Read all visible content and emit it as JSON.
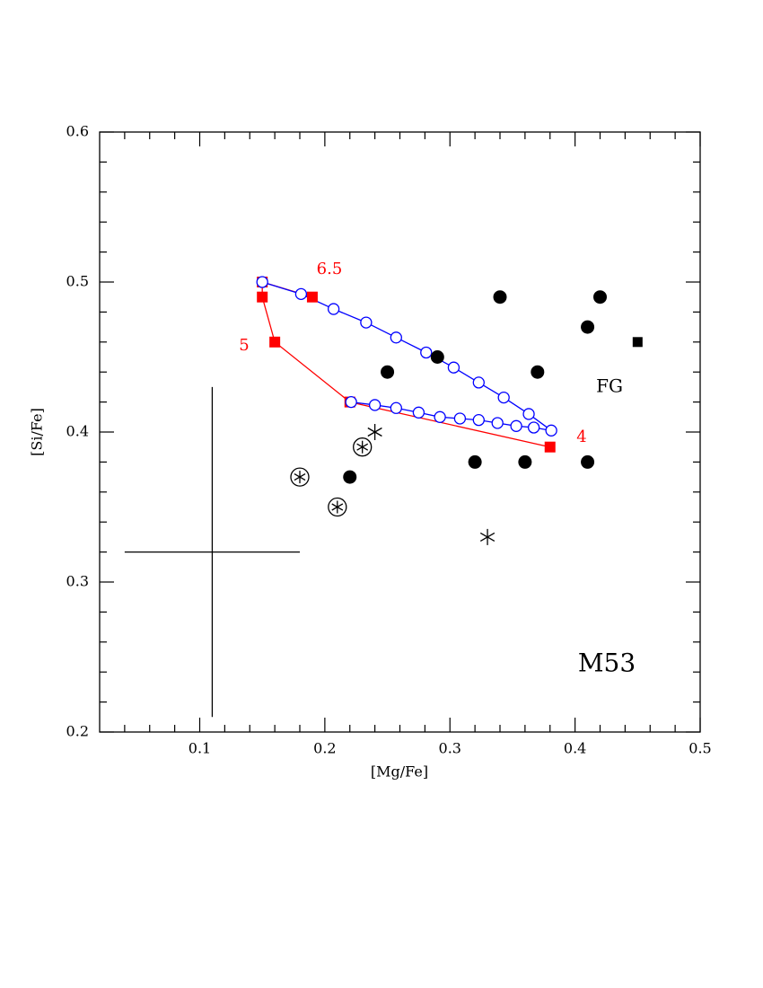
{
  "chart_data": {
    "type": "scatter",
    "xlabel": "[Mg/Fe]",
    "ylabel": "[Si/Fe]",
    "xlim": [
      0.02,
      0.5
    ],
    "ylim": [
      0.2,
      0.6
    ],
    "xticks": [
      0.1,
      0.2,
      0.3,
      0.4,
      0.5
    ],
    "yticks": [
      0.2,
      0.3,
      0.4,
      0.5,
      0.6
    ],
    "xminorticks": [
      0.04,
      0.06,
      0.08,
      0.12,
      0.14,
      0.16,
      0.18,
      0.22,
      0.24,
      0.26,
      0.28,
      0.32,
      0.34,
      0.36,
      0.38,
      0.42,
      0.44,
      0.46,
      0.48
    ],
    "yminorticks": [
      0.22,
      0.24,
      0.26,
      0.28,
      0.32,
      0.34,
      0.36,
      0.38,
      0.42,
      0.44,
      0.46,
      0.48,
      0.52,
      0.54,
      0.56,
      0.58
    ],
    "series": [
      {
        "marker": "circle",
        "color": "#000000",
        "x": [
          0.34,
          0.42,
          0.41,
          0.29,
          0.25,
          0.37,
          0.32,
          0.36,
          0.41,
          0.22
        ],
        "y": [
          0.49,
          0.49,
          0.47,
          0.45,
          0.44,
          0.44,
          0.38,
          0.38,
          0.38,
          0.37
        ]
      },
      {
        "marker": "square",
        "color": "#000000",
        "x": [
          0.45
        ],
        "y": [
          0.46
        ]
      },
      {
        "marker": "circled-asterisk",
        "color": "#000000",
        "x": [
          0.18,
          0.23,
          0.21
        ],
        "y": [
          0.37,
          0.39,
          0.35
        ]
      },
      {
        "marker": "asterisk",
        "color": "#000000",
        "x": [
          0.24,
          0.33
        ],
        "y": [
          0.4,
          0.33
        ]
      },
      {
        "marker": "open-circle-line",
        "color": "#0000ff",
        "x": [
          0.15,
          0.181,
          0.207,
          0.233,
          0.257,
          0.281,
          0.303,
          0.323,
          0.343,
          0.363,
          0.381,
          0.367,
          0.353,
          0.338,
          0.323,
          0.308,
          0.292,
          0.275,
          0.257,
          0.24,
          0.221
        ],
        "y": [
          0.5,
          0.492,
          0.482,
          0.473,
          0.463,
          0.453,
          0.443,
          0.433,
          0.423,
          0.412,
          0.401,
          0.403,
          0.404,
          0.406,
          0.408,
          0.409,
          0.41,
          0.413,
          0.416,
          0.418,
          0.42
        ]
      },
      {
        "marker": "square-line",
        "color": "#ff0000",
        "x": [
          0.38,
          0.22,
          0.16,
          0.15,
          0.15,
          0.19
        ],
        "y": [
          0.39,
          0.42,
          0.46,
          0.49,
          0.5,
          0.49
        ]
      }
    ],
    "errorbar": {
      "x": 0.11,
      "y": 0.32,
      "xerr": 0.07,
      "yerr": 0.11,
      "color": "#000000"
    },
    "annotations": [
      {
        "text": "6.5",
        "color": "#ff0000"
      },
      {
        "text": "5",
        "color": "#ff0000"
      },
      {
        "text": "4",
        "color": "#ff0000"
      },
      {
        "text": "FG",
        "color": "#000000"
      },
      {
        "text": "M53",
        "color": "#000000"
      }
    ]
  }
}
